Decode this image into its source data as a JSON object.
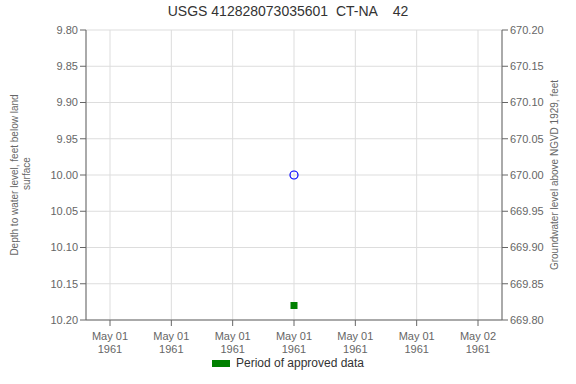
{
  "chart_data": {
    "type": "scatter",
    "title": "USGS 412828073035601  CT-NA    42",
    "ylabel": "Depth to water level, feet below land\n surface",
    "y2label": "Groundwater level above NGVD 1929, feet",
    "categories": [
      "May 01\n1961",
      "May 01\n1961",
      "May 01\n1961",
      "May 01\n1961",
      "May 01\n1961",
      "May 01\n1961",
      "May 02\n1961"
    ],
    "series": [
      {
        "color": "blue",
        "marker": "circle-open",
        "values": [
          null,
          null,
          null,
          10.0,
          null,
          null,
          null
        ]
      },
      {
        "name": "Period of approved data",
        "color": "green",
        "marker": "square",
        "values": [
          null,
          null,
          null,
          10.18,
          null,
          null,
          null
        ]
      }
    ],
    "ylim": [
      10.2,
      9.8
    ],
    "yticks": [
      {
        "value": 9.8,
        "label": "9.80"
      },
      9.85,
      {
        "value": 9.9,
        "label": "9.90"
      },
      9.95,
      {
        "value": 10.0,
        "label": "10.00"
      },
      10.05,
      {
        "value": 10.1,
        "label": "10.10"
      },
      10.15,
      {
        "value": 10.2,
        "label": "10.20"
      }
    ],
    "y2lim": [
      669.8,
      670.2
    ],
    "y2ticks": [
      {
        "value": 670.2,
        "label": "670.20"
      },
      670.15,
      {
        "value": 670.1,
        "label": "670.10"
      },
      670.05,
      {
        "value": 670.0,
        "label": "670.00"
      },
      669.95,
      {
        "value": 669.9,
        "label": "669.90"
      },
      669.85,
      {
        "value": 669.8,
        "label": "669.80"
      }
    ],
    "grid": true,
    "legend": "bottom"
  }
}
